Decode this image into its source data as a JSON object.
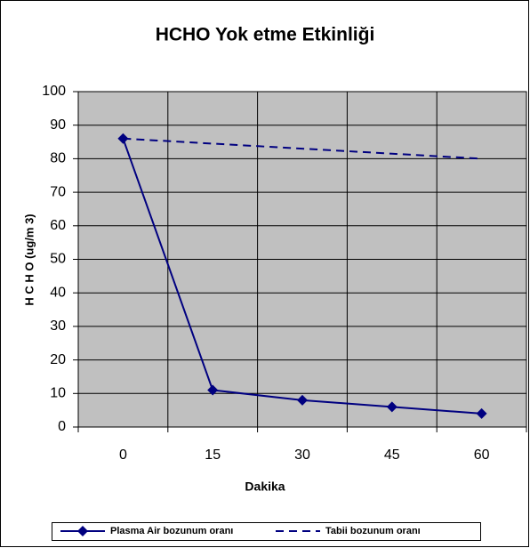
{
  "chart_data": {
    "type": "line",
    "title": "HCHO Yok etme Etkinliği",
    "xlabel": "Dakika",
    "ylabel": "H C  H O (ug/m 3)",
    "categories": [
      "0",
      "15",
      "30",
      "45",
      "60"
    ],
    "series": [
      {
        "name": "Plasma Air bozunum oranı",
        "color": "#000080",
        "dash": false,
        "marker": "diamond",
        "values": [
          86,
          11,
          8,
          6,
          4
        ]
      },
      {
        "name": "Tabii bozunum oranı",
        "color": "#000080",
        "dash": true,
        "marker": "none",
        "values": [
          86,
          84.5,
          83,
          81.5,
          80
        ]
      }
    ],
    "ylim": [
      0,
      100
    ],
    "yticks": [
      0,
      10,
      20,
      30,
      40,
      50,
      60,
      70,
      80,
      90,
      100
    ],
    "grid": true,
    "legend": "bottom"
  }
}
